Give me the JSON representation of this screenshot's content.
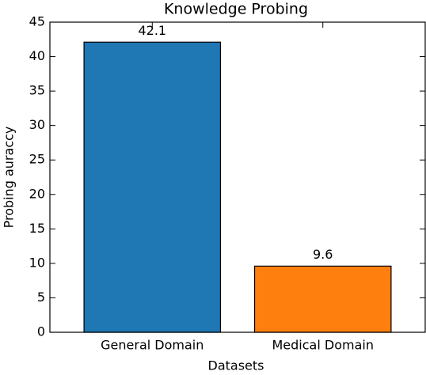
{
  "chart_data": {
    "type": "bar",
    "title": "Knowledge Probing",
    "x_label": "Datasets",
    "y_label": "Probing auraccy",
    "categories": [
      "General Domain",
      "Medical Domain"
    ],
    "values": [
      42.1,
      9.6
    ],
    "colors": [
      "#1f77b4",
      "#ff7f0e"
    ],
    "ylim": [
      0,
      45
    ],
    "yticks": [
      0,
      5,
      10,
      15,
      20,
      25,
      30,
      35,
      40,
      45
    ],
    "grid": false
  }
}
